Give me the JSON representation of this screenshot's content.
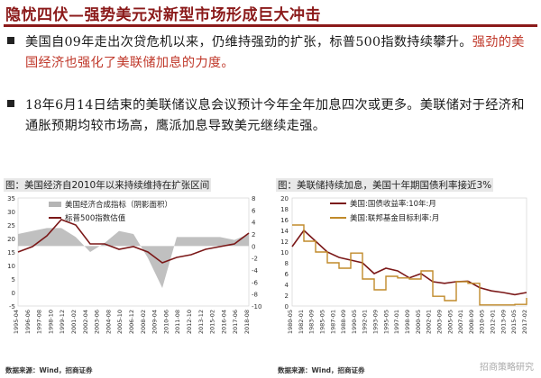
{
  "title": "隐忧四伏—强势美元对新型市场形成巨大冲击",
  "bullets": [
    {
      "plain": "美国自09年走出次贷危机以来，仍维持强劲的扩张，标普500指数持续攀升。",
      "highlight": "强劲的美国经济也强化了美联储加息的力度。"
    },
    {
      "plain": "18年6月14日结束的美联储议息会议预计今年全年加息四次或更多。美联储对于经济和通胀预期均较市场高，鹰派加息导致美元继续走强。",
      "highlight": ""
    }
  ],
  "colors": {
    "title": "#8b1a1a",
    "highlight": "#c0392b",
    "line": "#7b1818",
    "area": "#b5b5b5",
    "gold": "#c08a2a"
  },
  "chart_data": [
    {
      "type": "line",
      "title": "图：美国经济自2010年以来持续维持在扩张区间",
      "legend": [
        "美国经济合成指标（阴影面积）",
        "标普500指数估值"
      ],
      "x": [
        "1995-04",
        "1996-09",
        "1998-02",
        "1999-07",
        "2000-12",
        "2002-05",
        "2003-10",
        "2005-03",
        "2006-08",
        "2008-01",
        "2009-06",
        "2010-11",
        "2012-04",
        "2013-09",
        "2015-02",
        "2016-07",
        "2017-12"
      ],
      "xtick_labels": [
        "1995-04",
        "1996-06",
        "1997-08",
        "1998-10",
        "1999-12",
        "2001-02",
        "2002-04",
        "2003-06",
        "2004-08",
        "2005-10",
        "2006-12",
        "2008-02",
        "2009-04",
        "2010-06",
        "2011-08",
        "2012-10",
        "2013-12",
        "2015-02",
        "2016-04",
        "2017-06",
        "2018-08"
      ],
      "series": [
        {
          "name": "美国经济合成指标（阴影面积）",
          "type": "area",
          "axis": "right",
          "values": [
            2,
            2.5,
            3,
            3,
            1.5,
            -1,
            0.5,
            2.5,
            2,
            -2,
            -7,
            1.5,
            1.5,
            1.5,
            1.5,
            1,
            2
          ]
        },
        {
          "name": "标普500指数估值",
          "type": "line",
          "axis": "left",
          "values": [
            15,
            17,
            21,
            27,
            25,
            18,
            18,
            16,
            17,
            15,
            11,
            13,
            14,
            16,
            17,
            18,
            22
          ]
        }
      ],
      "ylim_left": [
        -5,
        35
      ],
      "ylim_right": [
        -10,
        8
      ],
      "yticks_left": [
        35,
        30,
        25,
        20,
        15,
        10,
        5,
        0,
        -5
      ],
      "yticks_right": [
        8,
        6,
        4,
        2,
        0,
        -2,
        -4,
        -6,
        -8,
        -10
      ],
      "source": "数据来源：Wind，招商证券"
    },
    {
      "type": "line",
      "title": "图：美联储持续加息，美国十年期国债利率接近3%",
      "legend": [
        "美国:国债收益率:10年:月",
        "美国:联邦基金目标利率:月"
      ],
      "x": [
        "1980-05",
        "1982-03",
        "1984-01",
        "1985-11",
        "1987-09",
        "1989-07",
        "1991-05",
        "1993-03",
        "1995-01",
        "1996-11",
        "1998-09",
        "2000-07",
        "2002-05",
        "2004-03",
        "2006-01",
        "2007-11",
        "2009-09",
        "2011-07",
        "2013-05",
        "2015-03",
        "2017-02"
      ],
      "xtick_labels": [
        "1980-05",
        "1982-01",
        "1983-09",
        "1985-05",
        "1987-01",
        "1988-09",
        "1990-05",
        "1992-01",
        "1993-09",
        "1995-05",
        "1997-01",
        "1998-09",
        "2000-05",
        "2002-01",
        "2003-09",
        "2005-05",
        "2007-01",
        "2008-09",
        "2010-05",
        "2012-01",
        "2013-09",
        "2015-05",
        "2017-02"
      ],
      "series": [
        {
          "name": "美国:国债收益率:10年:月",
          "values": [
            11,
            14,
            12,
            10,
            9,
            8.5,
            8,
            6,
            7,
            6.5,
            5.2,
            6,
            4.5,
            4.2,
            4.5,
            4.6,
            3.4,
            2.8,
            2.5,
            2.1,
            2.5
          ]
        },
        {
          "name": "美国:联邦基金目标利率:月",
          "values": [
            15,
            12,
            10,
            8,
            7,
            9.8,
            5,
            3,
            5.5,
            5.2,
            5,
            6.5,
            1.8,
            1,
            4.5,
            4.2,
            0.2,
            0.2,
            0.2,
            0.3,
            1.5
          ]
        }
      ],
      "ylim": [
        0,
        20
      ],
      "yticks": [
        20,
        18,
        16,
        14,
        12,
        10,
        8,
        6,
        4,
        2,
        0
      ],
      "source": "数据来源：Wind，招商证券"
    }
  ],
  "watermark": "招商策略研究"
}
